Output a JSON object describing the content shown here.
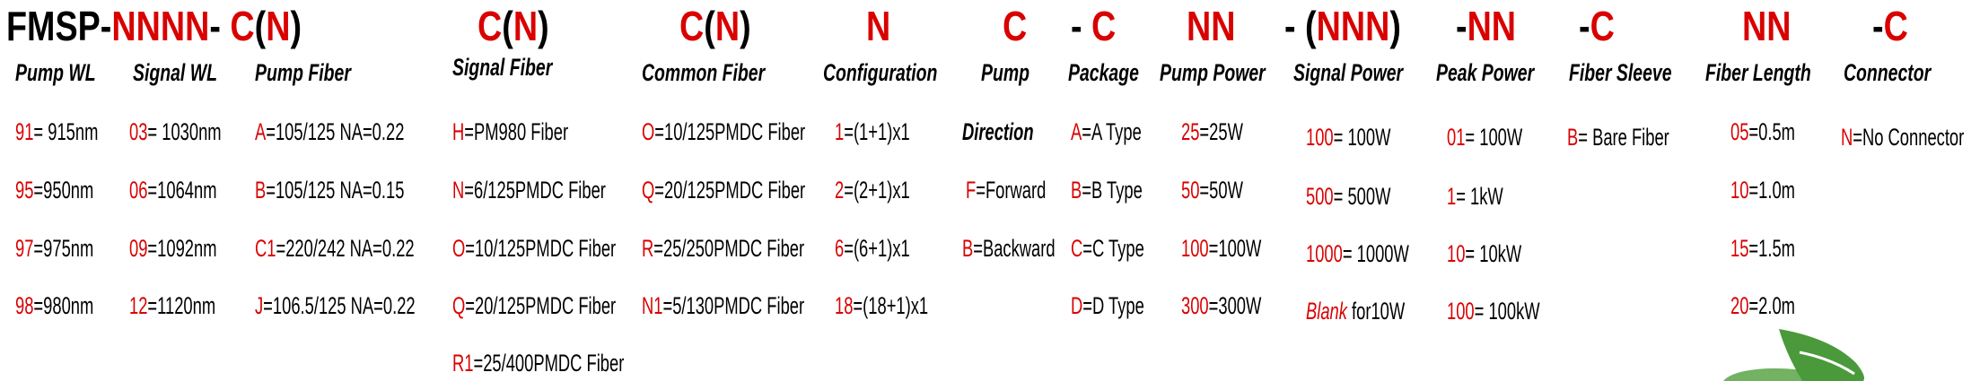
{
  "code_segments": [
    [
      {
        "t": "FMSP-",
        "c": "black"
      },
      {
        "t": "NNNN",
        "c": "red"
      },
      {
        "t": "- ",
        "c": "black"
      },
      {
        "t": "C",
        "c": "red"
      },
      {
        "t": "(",
        "c": "black"
      },
      {
        "t": "N",
        "c": "red"
      },
      {
        "t": ")",
        "c": "black"
      }
    ],
    [
      {
        "t": "C",
        "c": "red"
      },
      {
        "t": "(",
        "c": "black"
      },
      {
        "t": "N",
        "c": "red"
      },
      {
        "t": ")",
        "c": "black"
      }
    ],
    [
      {
        "t": "C",
        "c": "red"
      },
      {
        "t": "(",
        "c": "black"
      },
      {
        "t": "N",
        "c": "red"
      },
      {
        "t": ")",
        "c": "black"
      }
    ],
    [
      {
        "t": "N",
        "c": "red"
      }
    ],
    [
      {
        "t": "C",
        "c": "red"
      }
    ],
    [
      {
        "t": "- ",
        "c": "black"
      },
      {
        "t": "C",
        "c": "red"
      }
    ],
    [
      {
        "t": "NN",
        "c": "red"
      }
    ],
    [
      {
        "t": "- (",
        "c": "black"
      },
      {
        "t": "NNN",
        "c": "red"
      },
      {
        "t": ")",
        "c": "black"
      }
    ],
    [
      {
        "t": "-",
        "c": "black"
      },
      {
        "t": "NN",
        "c": "red"
      }
    ],
    [
      {
        "t": "-",
        "c": "black"
      },
      {
        "t": "C",
        "c": "red"
      }
    ],
    [
      {
        "t": "NN",
        "c": "red"
      }
    ],
    [
      {
        "t": "-",
        "c": "black"
      },
      {
        "t": "C",
        "c": "red"
      }
    ]
  ],
  "columns": [
    {
      "header": "Pump WL",
      "entries": [
        {
          "code": "91",
          "text": "= 915nm"
        },
        {
          "code": "95",
          "text": "=950nm"
        },
        {
          "code": "97",
          "text": "=975nm"
        },
        {
          "code": "98",
          "text": "=980nm"
        }
      ]
    },
    {
      "header": "Signal WL",
      "entries": [
        {
          "code": "03",
          "text": "= 1030nm"
        },
        {
          "code": "06",
          "text": "=1064nm"
        },
        {
          "code": "09",
          "text": "=1092nm"
        },
        {
          "code": "12",
          "text": "=1120nm"
        }
      ]
    },
    {
      "header": "Pump Fiber",
      "entries": [
        {
          "code": "A",
          "text": "=105/125 NA=0.22"
        },
        {
          "code": "B",
          "text": "=105/125 NA=0.15"
        },
        {
          "code": "C1",
          "text": "=220/242 NA=0.22"
        },
        {
          "code": "J",
          "text": "=106.5/125 NA=0.22"
        }
      ]
    },
    {
      "header": "Signal Fiber",
      "entries": [
        {
          "code": "H",
          "text": "=PM980 Fiber"
        },
        {
          "code": "N",
          "text": "=6/125PMDC Fiber"
        },
        {
          "code": "O",
          "text": "=10/125PMDC Fiber"
        },
        {
          "code": "Q",
          "text": "=20/125PMDC Fiber"
        },
        {
          "code": "R1",
          "text": "=25/400PMDC Fiber"
        }
      ]
    },
    {
      "header": "Common Fiber",
      "entries": [
        {
          "code": "O",
          "text": "=10/125PMDC Fiber"
        },
        {
          "code": "Q",
          "text": "=20/125PMDC Fiber"
        },
        {
          "code": "R",
          "text": "=25/250PMDC Fiber"
        },
        {
          "code": "N1",
          "text": "=5/130PMDC Fiber"
        }
      ]
    },
    {
      "header": "Configuration",
      "entries": [
        {
          "code": "1",
          "text": "=(1+1)x1"
        },
        {
          "code": "2",
          "text": "=(2+1)x1"
        },
        {
          "code": "6",
          "text": "=(6+1)x1"
        },
        {
          "code": "18",
          "text": "=(18+1)x1"
        }
      ]
    },
    {
      "header": "Pump",
      "subheader": "Direction",
      "entries": [
        {
          "code": "F",
          "text": "=Forward"
        },
        {
          "code": "B",
          "text": "=Backward"
        }
      ]
    },
    {
      "header": "Package",
      "entries": [
        {
          "code": "A",
          "text": "=A Type"
        },
        {
          "code": "B",
          "text": "=B Type"
        },
        {
          "code": "C",
          "text": "=C Type"
        },
        {
          "code": "D",
          "text": "=D Type"
        }
      ]
    },
    {
      "header": "Pump Power",
      "entries": [
        {
          "code": "25",
          "text": "=25W"
        },
        {
          "code": "50",
          "text": "=50W"
        },
        {
          "code": "100",
          "text": "=100W"
        },
        {
          "code": "300",
          "text": "=300W"
        }
      ]
    },
    {
      "header": "Signal Power",
      "entries": [
        {
          "code": "100",
          "text": "= 100W"
        },
        {
          "code": "500",
          "text": "= 500W"
        },
        {
          "code": "1000",
          "text": "= 1000W"
        },
        {
          "code": "Blank",
          "text": " for10W",
          "italic_code": true
        }
      ]
    },
    {
      "header": "Peak Power",
      "entries": [
        {
          "code": "01",
          "text": "= 100W"
        },
        {
          "code": "1",
          "text": "= 1kW"
        },
        {
          "code": "10",
          "text": "= 10kW"
        },
        {
          "code": "100",
          "text": "= 100kW"
        }
      ]
    },
    {
      "header": "Fiber Sleeve",
      "entries": [
        {
          "code": "B",
          "text": "= Bare Fiber"
        }
      ]
    },
    {
      "header": "Fiber Length",
      "entries": [
        {
          "code": "05",
          "text": "=0.5m"
        },
        {
          "code": "10",
          "text": "=1.0m"
        },
        {
          "code": "15",
          "text": "=1.5m"
        },
        {
          "code": "20",
          "text": "=2.0m"
        }
      ]
    },
    {
      "header": "Connector",
      "entries": [
        {
          "code": "N",
          "text": "=No Connector"
        }
      ]
    }
  ],
  "colors": {
    "code": "#d90000",
    "text": "#000000",
    "logo": "#4a9a3c"
  },
  "logo_icon": "green-leaf-logo"
}
